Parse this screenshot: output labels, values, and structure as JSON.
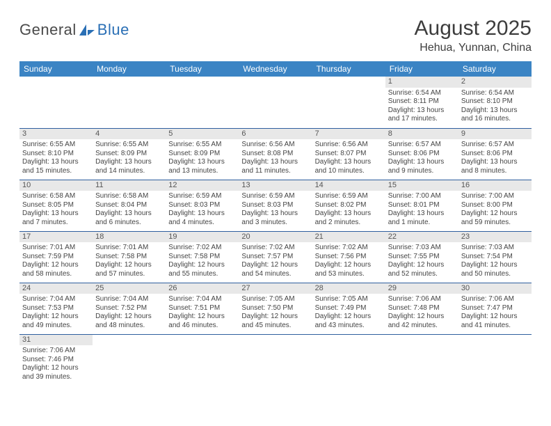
{
  "logo": {
    "part1": "General",
    "part2": "Blue"
  },
  "header": {
    "title": "August 2025",
    "location": "Hehua, Yunnan, China"
  },
  "colors": {
    "header_bg": "#3b84c4",
    "rule": "#2e5f9e",
    "daynum_bg": "#e8e8e8"
  },
  "weekdays": [
    "Sunday",
    "Monday",
    "Tuesday",
    "Wednesday",
    "Thursday",
    "Friday",
    "Saturday"
  ],
  "weeks": [
    [
      null,
      null,
      null,
      null,
      null,
      {
        "num": "1",
        "sunrise": "Sunrise: 6:54 AM",
        "sunset": "Sunset: 8:11 PM",
        "daylight": "Daylight: 13 hours and 17 minutes."
      },
      {
        "num": "2",
        "sunrise": "Sunrise: 6:54 AM",
        "sunset": "Sunset: 8:10 PM",
        "daylight": "Daylight: 13 hours and 16 minutes."
      }
    ],
    [
      {
        "num": "3",
        "sunrise": "Sunrise: 6:55 AM",
        "sunset": "Sunset: 8:10 PM",
        "daylight": "Daylight: 13 hours and 15 minutes."
      },
      {
        "num": "4",
        "sunrise": "Sunrise: 6:55 AM",
        "sunset": "Sunset: 8:09 PM",
        "daylight": "Daylight: 13 hours and 14 minutes."
      },
      {
        "num": "5",
        "sunrise": "Sunrise: 6:55 AM",
        "sunset": "Sunset: 8:09 PM",
        "daylight": "Daylight: 13 hours and 13 minutes."
      },
      {
        "num": "6",
        "sunrise": "Sunrise: 6:56 AM",
        "sunset": "Sunset: 8:08 PM",
        "daylight": "Daylight: 13 hours and 11 minutes."
      },
      {
        "num": "7",
        "sunrise": "Sunrise: 6:56 AM",
        "sunset": "Sunset: 8:07 PM",
        "daylight": "Daylight: 13 hours and 10 minutes."
      },
      {
        "num": "8",
        "sunrise": "Sunrise: 6:57 AM",
        "sunset": "Sunset: 8:06 PM",
        "daylight": "Daylight: 13 hours and 9 minutes."
      },
      {
        "num": "9",
        "sunrise": "Sunrise: 6:57 AM",
        "sunset": "Sunset: 8:06 PM",
        "daylight": "Daylight: 13 hours and 8 minutes."
      }
    ],
    [
      {
        "num": "10",
        "sunrise": "Sunrise: 6:58 AM",
        "sunset": "Sunset: 8:05 PM",
        "daylight": "Daylight: 13 hours and 7 minutes."
      },
      {
        "num": "11",
        "sunrise": "Sunrise: 6:58 AM",
        "sunset": "Sunset: 8:04 PM",
        "daylight": "Daylight: 13 hours and 6 minutes."
      },
      {
        "num": "12",
        "sunrise": "Sunrise: 6:59 AM",
        "sunset": "Sunset: 8:03 PM",
        "daylight": "Daylight: 13 hours and 4 minutes."
      },
      {
        "num": "13",
        "sunrise": "Sunrise: 6:59 AM",
        "sunset": "Sunset: 8:03 PM",
        "daylight": "Daylight: 13 hours and 3 minutes."
      },
      {
        "num": "14",
        "sunrise": "Sunrise: 6:59 AM",
        "sunset": "Sunset: 8:02 PM",
        "daylight": "Daylight: 13 hours and 2 minutes."
      },
      {
        "num": "15",
        "sunrise": "Sunrise: 7:00 AM",
        "sunset": "Sunset: 8:01 PM",
        "daylight": "Daylight: 13 hours and 1 minute."
      },
      {
        "num": "16",
        "sunrise": "Sunrise: 7:00 AM",
        "sunset": "Sunset: 8:00 PM",
        "daylight": "Daylight: 12 hours and 59 minutes."
      }
    ],
    [
      {
        "num": "17",
        "sunrise": "Sunrise: 7:01 AM",
        "sunset": "Sunset: 7:59 PM",
        "daylight": "Daylight: 12 hours and 58 minutes."
      },
      {
        "num": "18",
        "sunrise": "Sunrise: 7:01 AM",
        "sunset": "Sunset: 7:58 PM",
        "daylight": "Daylight: 12 hours and 57 minutes."
      },
      {
        "num": "19",
        "sunrise": "Sunrise: 7:02 AM",
        "sunset": "Sunset: 7:58 PM",
        "daylight": "Daylight: 12 hours and 55 minutes."
      },
      {
        "num": "20",
        "sunrise": "Sunrise: 7:02 AM",
        "sunset": "Sunset: 7:57 PM",
        "daylight": "Daylight: 12 hours and 54 minutes."
      },
      {
        "num": "21",
        "sunrise": "Sunrise: 7:02 AM",
        "sunset": "Sunset: 7:56 PM",
        "daylight": "Daylight: 12 hours and 53 minutes."
      },
      {
        "num": "22",
        "sunrise": "Sunrise: 7:03 AM",
        "sunset": "Sunset: 7:55 PM",
        "daylight": "Daylight: 12 hours and 52 minutes."
      },
      {
        "num": "23",
        "sunrise": "Sunrise: 7:03 AM",
        "sunset": "Sunset: 7:54 PM",
        "daylight": "Daylight: 12 hours and 50 minutes."
      }
    ],
    [
      {
        "num": "24",
        "sunrise": "Sunrise: 7:04 AM",
        "sunset": "Sunset: 7:53 PM",
        "daylight": "Daylight: 12 hours and 49 minutes."
      },
      {
        "num": "25",
        "sunrise": "Sunrise: 7:04 AM",
        "sunset": "Sunset: 7:52 PM",
        "daylight": "Daylight: 12 hours and 48 minutes."
      },
      {
        "num": "26",
        "sunrise": "Sunrise: 7:04 AM",
        "sunset": "Sunset: 7:51 PM",
        "daylight": "Daylight: 12 hours and 46 minutes."
      },
      {
        "num": "27",
        "sunrise": "Sunrise: 7:05 AM",
        "sunset": "Sunset: 7:50 PM",
        "daylight": "Daylight: 12 hours and 45 minutes."
      },
      {
        "num": "28",
        "sunrise": "Sunrise: 7:05 AM",
        "sunset": "Sunset: 7:49 PM",
        "daylight": "Daylight: 12 hours and 43 minutes."
      },
      {
        "num": "29",
        "sunrise": "Sunrise: 7:06 AM",
        "sunset": "Sunset: 7:48 PM",
        "daylight": "Daylight: 12 hours and 42 minutes."
      },
      {
        "num": "30",
        "sunrise": "Sunrise: 7:06 AM",
        "sunset": "Sunset: 7:47 PM",
        "daylight": "Daylight: 12 hours and 41 minutes."
      }
    ],
    [
      {
        "num": "31",
        "sunrise": "Sunrise: 7:06 AM",
        "sunset": "Sunset: 7:46 PM",
        "daylight": "Daylight: 12 hours and 39 minutes."
      },
      null,
      null,
      null,
      null,
      null,
      null
    ]
  ]
}
